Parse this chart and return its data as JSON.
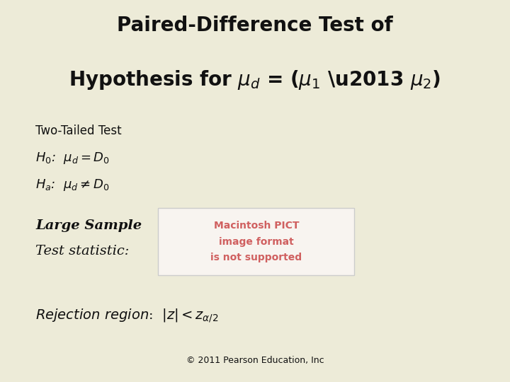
{
  "bg_color": "#edebd8",
  "subtitle": "Two-Tailed Test",
  "pict_text_line1": "Macintosh PICT",
  "pict_text_line2": "image format",
  "pict_text_line3": "is not supported",
  "pict_box_color": "#f8f4f0",
  "pict_text_color": "#d06060",
  "copyright": "© 2011 Pearson Education, Inc",
  "title_fontsize": 20,
  "subtitle_fontsize": 12,
  "body_fontsize": 13,
  "italic_fontsize": 14,
  "rejection_fontsize": 14,
  "copyright_fontsize": 9,
  "text_color": "#111111"
}
